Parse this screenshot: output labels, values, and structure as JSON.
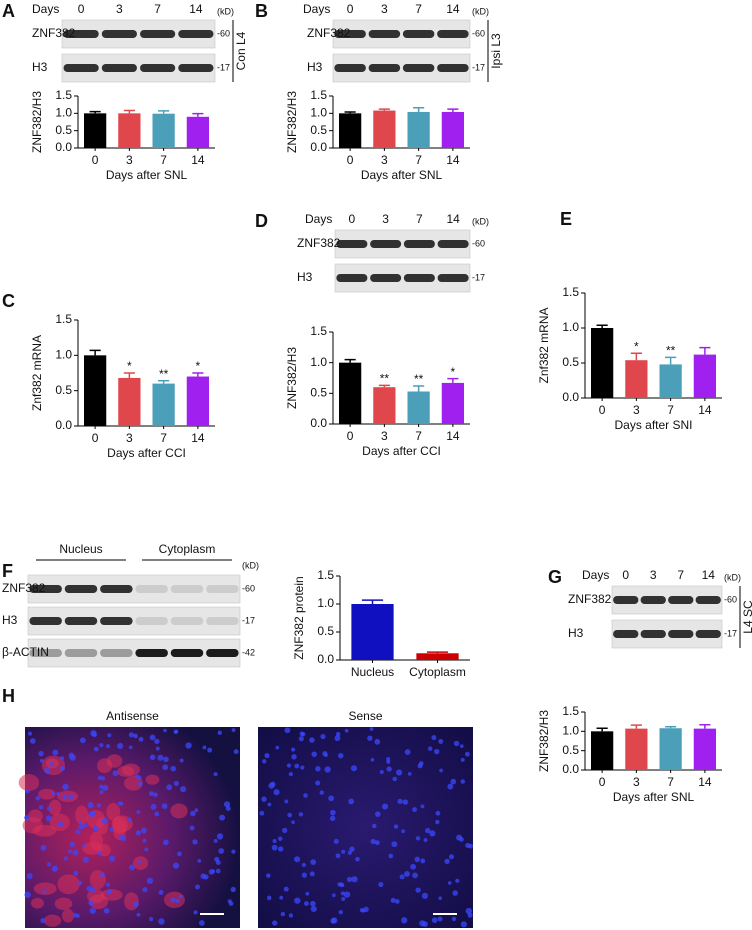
{
  "panel_labels": [
    "A",
    "B",
    "C",
    "D",
    "E",
    "F",
    "G",
    "H"
  ],
  "blots": [
    {
      "header": "Days",
      "lanes": [
        "0",
        "3",
        "7",
        "14"
      ],
      "unit": "(kD)",
      "rows": [
        {
          "name": "ZNF382",
          "marker": "-60"
        },
        {
          "name": "H3",
          "marker": "-17"
        }
      ],
      "side": "Con L4"
    },
    {
      "header": "Days",
      "lanes": [
        "0",
        "3",
        "7",
        "14"
      ],
      "unit": "(kD)",
      "rows": [
        {
          "name": "ZNF382",
          "marker": "-60"
        },
        {
          "name": "H3",
          "marker": "-17"
        }
      ],
      "side": "Ipsi L3"
    },
    {
      "header": "Days",
      "lanes": [
        "0",
        "3",
        "7",
        "14"
      ],
      "unit": "(kD)",
      "rows": [
        {
          "name": "ZNF382",
          "marker": "-60"
        },
        {
          "name": "H3",
          "marker": "-17"
        }
      ]
    },
    {
      "groups": [
        "Nucleus",
        "Cytoplasm"
      ],
      "unit": "(kD)",
      "rows": [
        {
          "name": "ZNF382",
          "marker": "-60"
        },
        {
          "name": "H3",
          "marker": "-17"
        },
        {
          "name": "β-ACTIN",
          "marker": "-42"
        }
      ]
    },
    {
      "header": "Days",
      "lanes": [
        "0",
        "3",
        "7",
        "14"
      ],
      "unit": "(kD)",
      "rows": [
        {
          "name": "ZNF382",
          "marker": "-60"
        },
        {
          "name": "H3",
          "marker": "-17"
        }
      ],
      "side": "L4 SC"
    }
  ],
  "images": [
    {
      "title": "Antisense"
    },
    {
      "title": "Sense"
    }
  ],
  "chart_data": [
    {
      "type": "bar",
      "ylabel": "ZNF382/H3",
      "xlabel": "Days after SNL",
      "categories": [
        "0",
        "3",
        "7",
        "14"
      ],
      "values": [
        1.0,
        1.0,
        0.99,
        0.9
      ],
      "errors": [
        0.05,
        0.08,
        0.08,
        0.09
      ],
      "colors": [
        "#000000",
        "#e0474c",
        "#4c9fb8",
        "#a020f0"
      ],
      "ylim": [
        0,
        1.5
      ],
      "yticks": [
        {
          "value": 0,
          "label": "0.0"
        },
        0.5,
        {
          "value": 1,
          "label": "1.0"
        },
        1.5
      ]
    },
    {
      "type": "bar",
      "ylabel": "ZNF382/H3",
      "xlabel": "Days after SNL",
      "categories": [
        "0",
        "3",
        "7",
        "14"
      ],
      "values": [
        1.0,
        1.08,
        1.04,
        1.04
      ],
      "errors": [
        0.04,
        0.04,
        0.12,
        0.08
      ],
      "colors": [
        "#000000",
        "#e0474c",
        "#4c9fb8",
        "#a020f0"
      ],
      "ylim": [
        0,
        1.5
      ],
      "yticks": [
        {
          "value": 0,
          "label": "0.0"
        },
        0.5,
        {
          "value": 1,
          "label": "1.0"
        },
        1.5
      ]
    },
    {
      "type": "bar",
      "ylabel": "Znf382 mRNA",
      "xlabel": "Days after CCI",
      "categories": [
        "0",
        "3",
        "7",
        "14"
      ],
      "values": [
        1.0,
        0.68,
        0.6,
        0.7
      ],
      "errors": [
        0.07,
        0.07,
        0.04,
        0.05
      ],
      "annotations": [
        null,
        "*",
        "**",
        "*"
      ],
      "colors": [
        "#000000",
        "#e0474c",
        "#4c9fb8",
        "#a020f0"
      ],
      "ylim": [
        0,
        1.5
      ],
      "yticks": [
        {
          "value": 0,
          "label": "0.0"
        },
        0.5,
        {
          "value": 1,
          "label": "1.0"
        },
        1.5
      ]
    },
    {
      "type": "bar",
      "ylabel": "ZNF382/H3",
      "xlabel": "Days after CCI",
      "categories": [
        "0",
        "3",
        "7",
        "14"
      ],
      "values": [
        1.0,
        0.6,
        0.53,
        0.67
      ],
      "errors": [
        0.05,
        0.03,
        0.09,
        0.07
      ],
      "annotations": [
        null,
        "**",
        "**",
        "*"
      ],
      "colors": [
        "#000000",
        "#e0474c",
        "#4c9fb8",
        "#a020f0"
      ],
      "ylim": [
        0,
        1.5
      ],
      "yticks": [
        {
          "value": 0,
          "label": "0.0"
        },
        0.5,
        {
          "value": 1,
          "label": "1.0"
        },
        1.5
      ]
    },
    {
      "type": "bar",
      "ylabel": "Znf382 mRNA",
      "xlabel": "Days after SNI",
      "categories": [
        "0",
        "3",
        "7",
        "14"
      ],
      "values": [
        1.0,
        0.54,
        0.48,
        0.62
      ],
      "errors": [
        0.04,
        0.1,
        0.1,
        0.1
      ],
      "annotations": [
        null,
        "*",
        "**",
        null
      ],
      "colors": [
        "#000000",
        "#e0474c",
        "#4c9fb8",
        "#a020f0"
      ],
      "ylim": [
        0,
        1.5
      ],
      "yticks": [
        {
          "value": 0,
          "label": "0.0"
        },
        0.5,
        {
          "value": 1,
          "label": "1.0"
        },
        1.5
      ]
    },
    {
      "type": "bar",
      "ylabel": "ZNF382 protein",
      "categories": [
        "Nucleus",
        "Cytoplasm"
      ],
      "values": [
        1.0,
        0.12
      ],
      "errors": [
        0.07,
        0.02
      ],
      "colors": [
        "#1010c0",
        "#cc0000"
      ],
      "ylim": [
        0,
        1.5
      ],
      "yticks": [
        {
          "value": 0,
          "label": "0.0"
        },
        0.5,
        {
          "value": 1,
          "label": "1.0"
        },
        1.5
      ]
    },
    {
      "type": "bar",
      "ylabel": "ZNF382/H3",
      "xlabel": "Days after SNL",
      "categories": [
        "0",
        "3",
        "7",
        "14"
      ],
      "values": [
        1.0,
        1.07,
        1.08,
        1.07
      ],
      "errors": [
        0.08,
        0.09,
        0.04,
        0.1
      ],
      "colors": [
        "#000000",
        "#e0474c",
        "#4c9fb8",
        "#a020f0"
      ],
      "ylim": [
        0,
        1.5
      ],
      "yticks": [
        {
          "value": 0,
          "label": "0.0"
        },
        0.5,
        {
          "value": 1,
          "label": "1.0"
        },
        1.5
      ]
    }
  ]
}
